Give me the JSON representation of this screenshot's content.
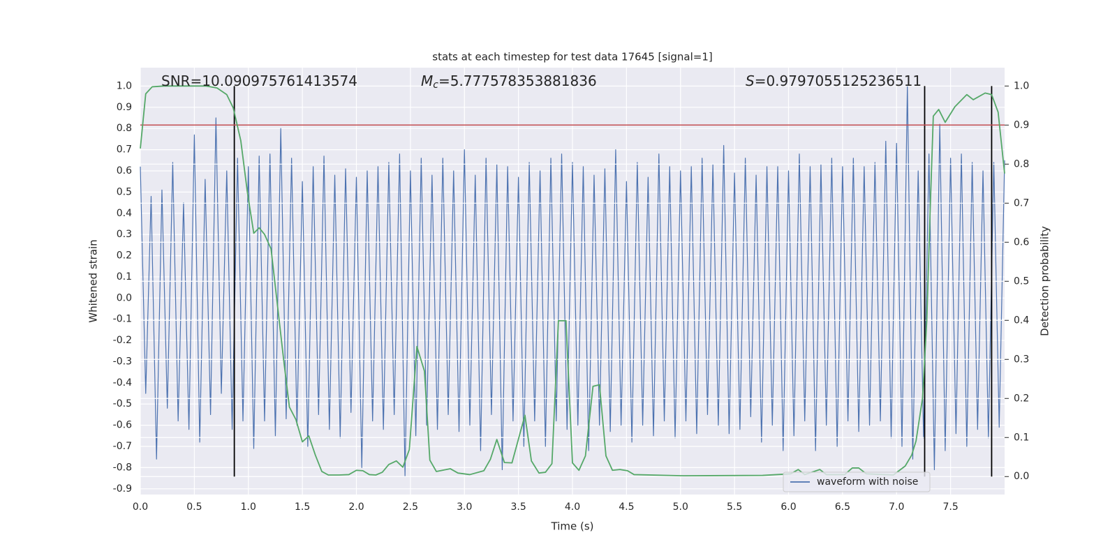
{
  "chart_data": {
    "type": "line",
    "title": "stats at each timestep for test data 17645 [signal=1]",
    "x_label": "Time (s)",
    "y_label": "Whitened strain",
    "y2_label": "Detection probability",
    "annotations": [
      {
        "text": "SNR=10.090975761413574"
      },
      {
        "symbol": "M",
        "subscript": "c",
        "text": "=5.777578353881836"
      },
      {
        "symbol": "S",
        "text": "=0.9797055125236511"
      }
    ],
    "xlim": [
      0,
      8.0
    ],
    "ylim": [
      -0.927,
      1.087
    ],
    "y2lim": [
      -0.046,
      1.047
    ],
    "xticks": [
      {
        "value": 0,
        "label": "0.0"
      },
      0.5,
      {
        "value": 1,
        "label": "1.0"
      },
      1.5,
      {
        "value": 2,
        "label": "2.0"
      },
      2.5,
      {
        "value": 3,
        "label": "3.0"
      },
      3.5,
      {
        "value": 4,
        "label": "4.0"
      },
      4.5,
      {
        "value": 5,
        "label": "5.0"
      },
      5.5,
      {
        "value": 6,
        "label": "6.0"
      },
      6.5,
      {
        "value": 7,
        "label": "7.0"
      },
      7.5
    ],
    "yticks": [
      {
        "value": 1,
        "label": "1.0"
      },
      0.9,
      0.8,
      0.7,
      0.6,
      0.5,
      0.4,
      0.3,
      0.2,
      0.1,
      {
        "value": 0,
        "label": "0.0"
      },
      -0.1,
      -0.2,
      -0.3,
      -0.4,
      -0.5,
      -0.6,
      -0.7,
      -0.8,
      -0.9
    ],
    "y2ticks": [
      {
        "value": 1,
        "label": "1.0"
      },
      0.9,
      0.8,
      0.7,
      0.6,
      0.5,
      0.4,
      0.3,
      0.2,
      0.1,
      {
        "value": 0,
        "label": "0.0"
      }
    ],
    "grid": true,
    "legend": "lower right",
    "hline_y2": 0.9,
    "hline_color": "#c44e52",
    "vlines": [
      0.87,
      7.26,
      7.88
    ],
    "vline_y2range": [
      0,
      1
    ],
    "vline_color": "#000000",
    "series": [
      {
        "name": "waveform with noise",
        "color": "#4c72b0",
        "x": [
          0,
          0.05,
          0.1,
          0.15,
          0.2,
          0.25,
          0.3,
          0.35,
          0.4,
          0.45,
          0.5,
          0.55,
          0.6,
          0.65,
          0.7,
          0.75,
          0.8,
          0.85,
          0.9,
          0.95,
          1.0,
          1.05,
          1.1,
          1.15,
          1.2,
          1.25,
          1.3,
          1.35,
          1.4,
          1.45,
          1.5,
          1.55,
          1.6,
          1.65,
          1.7,
          1.75,
          1.8,
          1.85,
          1.9,
          1.95,
          2.0,
          2.05,
          2.1,
          2.15,
          2.2,
          2.25,
          2.3,
          2.35,
          2.4,
          2.45,
          2.5,
          2.55,
          2.6,
          2.65,
          2.7,
          2.75,
          2.8,
          2.85,
          2.9,
          2.95,
          3.0,
          3.05,
          3.1,
          3.15,
          3.2,
          3.25,
          3.3,
          3.35,
          3.4,
          3.45,
          3.5,
          3.55,
          3.6,
          3.65,
          3.7,
          3.75,
          3.8,
          3.85,
          3.9,
          3.95,
          4.0,
          4.05,
          4.1,
          4.15,
          4.2,
          4.25,
          4.3,
          4.35,
          4.4,
          4.45,
          4.5,
          4.55,
          4.6,
          4.65,
          4.7,
          4.75,
          4.8,
          4.85,
          4.9,
          4.95,
          5.0,
          5.05,
          5.1,
          5.15,
          5.2,
          5.25,
          5.3,
          5.35,
          5.4,
          5.45,
          5.5,
          5.55,
          5.6,
          5.65,
          5.7,
          5.75,
          5.8,
          5.85,
          5.9,
          5.95,
          6.0,
          6.05,
          6.1,
          6.15,
          6.2,
          6.25,
          6.3,
          6.35,
          6.4,
          6.45,
          6.5,
          6.55,
          6.6,
          6.65,
          6.7,
          6.75,
          6.8,
          6.85,
          6.9,
          6.95,
          7.0,
          7.05,
          7.1,
          7.15,
          7.2,
          7.25,
          7.3,
          7.35,
          7.4,
          7.45,
          7.5,
          7.55,
          7.6,
          7.65,
          7.7,
          7.75,
          7.8,
          7.85,
          7.9,
          7.95,
          8.0
        ],
        "values": [
          0.62,
          -0.45,
          0.48,
          -0.76,
          0.51,
          -0.52,
          0.64,
          -0.58,
          0.45,
          -0.62,
          0.77,
          -0.68,
          0.56,
          -0.55,
          0.85,
          -0.45,
          0.6,
          -0.62,
          0.66,
          -0.58,
          0.62,
          -0.71,
          0.67,
          -0.58,
          0.68,
          -0.65,
          0.8,
          -0.57,
          0.66,
          -0.6,
          0.55,
          -0.7,
          0.62,
          -0.55,
          0.67,
          -0.62,
          0.58,
          -0.66,
          0.61,
          -0.54,
          0.57,
          -0.8,
          0.6,
          -0.58,
          0.62,
          -0.62,
          0.64,
          -0.55,
          0.68,
          -0.84,
          0.6,
          -0.65,
          0.66,
          -0.6,
          0.58,
          -0.62,
          0.66,
          -0.55,
          0.6,
          -0.63,
          0.7,
          -0.6,
          0.58,
          -0.72,
          0.66,
          -0.55,
          0.63,
          -0.81,
          0.62,
          -0.58,
          0.57,
          -0.7,
          0.64,
          -0.58,
          0.6,
          -0.7,
          0.66,
          -0.58,
          0.68,
          -0.62,
          0.64,
          -0.6,
          0.62,
          -0.72,
          0.58,
          -0.6,
          0.61,
          -0.63,
          0.7,
          -0.6,
          0.55,
          -0.68,
          0.64,
          -0.6,
          0.57,
          -0.65,
          0.68,
          -0.58,
          0.62,
          -0.66,
          0.6,
          -0.58,
          0.62,
          -0.64,
          0.66,
          -0.55,
          0.63,
          -0.6,
          0.72,
          -0.64,
          0.59,
          -0.62,
          0.66,
          -0.56,
          0.58,
          -0.68,
          0.62,
          -0.6,
          0.62,
          -0.72,
          0.6,
          -0.65,
          0.68,
          -0.58,
          0.62,
          -0.72,
          0.63,
          -0.6,
          0.66,
          -0.7,
          0.62,
          -0.58,
          0.66,
          -0.63,
          0.62,
          -0.6,
          0.64,
          -0.58,
          0.74,
          -0.66,
          0.73,
          -0.7,
          1.0,
          -0.76,
          0.6,
          -0.66,
          0.68,
          -0.81,
          0.82,
          -0.72,
          0.66,
          -0.64,
          0.68,
          -0.7,
          0.64,
          -0.62,
          0.6,
          -0.66,
          0.64,
          -0.61,
          0.65
        ]
      },
      {
        "color": "#55a868",
        "axis": "y2",
        "x": [
          0,
          0.05,
          0.11,
          0.22,
          0.61,
          0.71,
          0.8,
          0.86,
          0.93,
          0.99,
          1.05,
          1.1,
          1.15,
          1.21,
          1.27,
          1.33,
          1.38,
          1.44,
          1.5,
          1.56,
          1.62,
          1.68,
          1.74,
          1.84,
          1.93,
          2.0,
          2.06,
          2.12,
          2.18,
          2.24,
          2.3,
          2.37,
          2.43,
          2.49,
          2.56,
          2.63,
          2.68,
          2.74,
          2.87,
          2.94,
          3.05,
          3.18,
          3.24,
          3.3,
          3.37,
          3.44,
          3.56,
          3.62,
          3.69,
          3.75,
          3.81,
          3.87,
          3.94,
          4.0,
          4.06,
          4.12,
          4.19,
          4.25,
          4.31,
          4.37,
          4.44,
          4.51,
          4.57,
          5.03,
          5.76,
          6.02,
          6.09,
          6.15,
          6.29,
          6.35,
          6.52,
          6.59,
          6.65,
          6.72,
          6.97,
          7.08,
          7.14,
          7.18,
          7.24,
          7.28,
          7.31,
          7.34,
          7.39,
          7.45,
          7.54,
          7.65,
          7.71,
          7.82,
          7.88,
          7.94,
          8.0
        ],
        "values": [
          0.84,
          0.98,
          0.998,
          1.0,
          1.0,
          0.995,
          0.978,
          0.944,
          0.86,
          0.73,
          0.623,
          0.637,
          0.62,
          0.583,
          0.437,
          0.291,
          0.178,
          0.146,
          0.089,
          0.104,
          0.055,
          0.013,
          0.004,
          0.004,
          0.005,
          0.016,
          0.015,
          0.005,
          0.004,
          0.011,
          0.031,
          0.04,
          0.024,
          0.069,
          0.333,
          0.27,
          0.042,
          0.013,
          0.02,
          0.009,
          0.005,
          0.015,
          0.044,
          0.095,
          0.036,
          0.035,
          0.157,
          0.04,
          0.009,
          0.011,
          0.033,
          0.399,
          0.399,
          0.035,
          0.016,
          0.053,
          0.231,
          0.235,
          0.053,
          0.016,
          0.018,
          0.015,
          0.005,
          0.002,
          0.003,
          0.007,
          0.018,
          0.005,
          0.018,
          0.005,
          0.005,
          0.022,
          0.022,
          0.007,
          0.004,
          0.027,
          0.055,
          0.091,
          0.2,
          0.4,
          0.674,
          0.923,
          0.94,
          0.907,
          0.947,
          0.978,
          0.965,
          0.982,
          0.978,
          0.933,
          0.776
        ]
      }
    ]
  }
}
